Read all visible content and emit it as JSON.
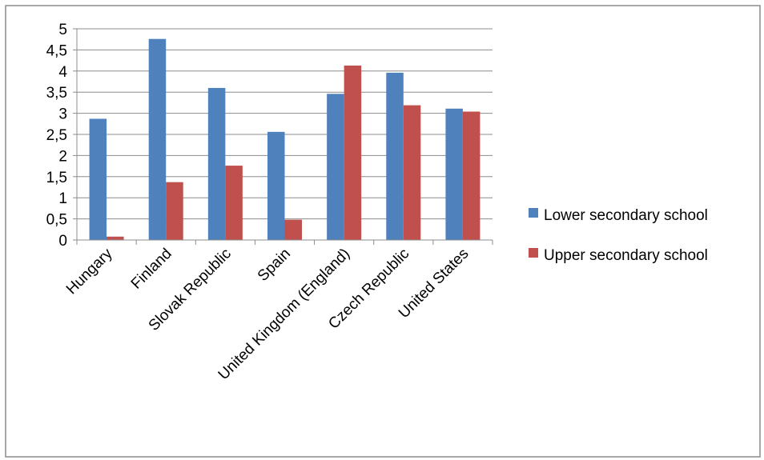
{
  "chart_data": {
    "type": "bar",
    "categories": [
      "Hungary",
      "Finland",
      "Slovak Republic",
      "Spain",
      "United Kingdom (England)",
      "Czech Republic",
      "United States"
    ],
    "series": [
      {
        "name": "Lower secondary school",
        "color": "#4f81bd",
        "values": [
          2.87,
          4.76,
          3.6,
          2.56,
          3.46,
          3.96,
          3.11
        ]
      },
      {
        "name": "Upper secondary school",
        "color": "#c0504d",
        "values": [
          0.08,
          1.37,
          1.76,
          0.48,
          4.13,
          3.19,
          3.04
        ]
      }
    ],
    "yticks": [
      "0",
      "0,5",
      "1",
      "1,5",
      "2",
      "2,5",
      "3",
      "3,5",
      "4",
      "4,5",
      "5"
    ],
    "ylim": [
      0,
      5
    ],
    "grid": true,
    "legend": "right"
  }
}
